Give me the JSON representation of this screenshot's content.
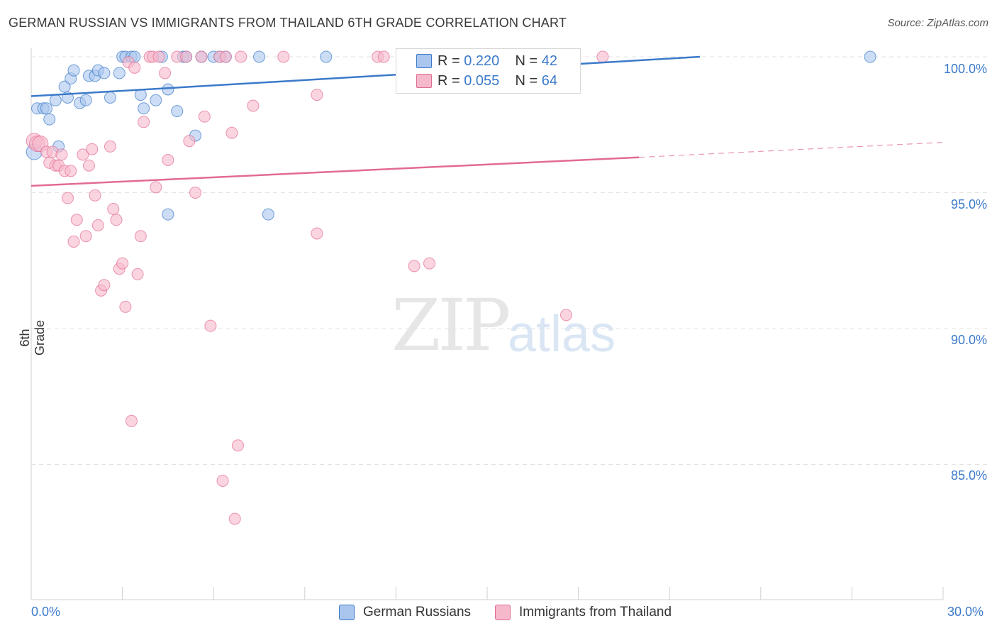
{
  "header": {
    "title": "GERMAN RUSSIAN VS IMMIGRANTS FROM THAILAND 6TH GRADE CORRELATION CHART",
    "source": "Source: ZipAtlas.com"
  },
  "watermark": {
    "zip": "ZIP",
    "atlas": "atlas"
  },
  "legend": {
    "rows": [
      {
        "r_label": "R =",
        "r_value": "0.220",
        "n_label": "N =",
        "n_value": "42"
      },
      {
        "r_label": "R =",
        "r_value": "0.055",
        "n_label": "N =",
        "n_value": "64"
      }
    ]
  },
  "bottom_legend": {
    "series1": "German Russians",
    "series2": "Immigrants from Thailand"
  },
  "axes": {
    "ylabel": "6th Grade",
    "xmin_label": "0.0%",
    "xmax_label": "30.0%",
    "yticks": [
      "100.0%",
      "95.0%",
      "90.0%",
      "85.0%"
    ]
  },
  "colors": {
    "blue": "#3b7ac9",
    "blue_fill": "#aac6ee",
    "pink": "#e26b93",
    "pink_fill": "#f6b9cc",
    "grid": "#e3e3e3"
  },
  "chart_data": {
    "type": "scatter",
    "xlabel": "",
    "ylabel": "6th Grade",
    "xlim": [
      0,
      30
    ],
    "ylim": [
      80.4,
      100.7
    ],
    "grid": true,
    "series": [
      {
        "name": "German Russians",
        "color": "#3b7ac9",
        "r": 0.22,
        "n": 42,
        "trend": {
          "x": [
            0,
            22.0
          ],
          "y": [
            98.55,
            100.0
          ]
        },
        "points": [
          [
            0.1,
            96.5
          ],
          [
            0.2,
            98.1
          ],
          [
            0.4,
            98.1
          ],
          [
            0.5,
            98.1
          ],
          [
            0.6,
            97.7
          ],
          [
            0.8,
            98.4
          ],
          [
            0.9,
            96.7
          ],
          [
            1.1,
            98.9
          ],
          [
            1.2,
            98.5
          ],
          [
            1.3,
            99.2
          ],
          [
            1.4,
            99.5
          ],
          [
            1.6,
            98.3
          ],
          [
            1.8,
            98.4
          ],
          [
            1.9,
            99.3
          ],
          [
            2.1,
            99.3
          ],
          [
            2.2,
            99.5
          ],
          [
            2.4,
            99.4
          ],
          [
            2.6,
            98.5
          ],
          [
            2.9,
            99.4
          ],
          [
            3.0,
            100.0
          ],
          [
            3.1,
            100.0
          ],
          [
            3.3,
            100.0
          ],
          [
            3.4,
            100.0
          ],
          [
            3.6,
            98.6
          ],
          [
            3.7,
            98.1
          ],
          [
            4.1,
            98.4
          ],
          [
            4.3,
            100.0
          ],
          [
            4.5,
            94.2
          ],
          [
            4.5,
            98.8
          ],
          [
            4.8,
            98.0
          ],
          [
            5.0,
            100.0
          ],
          [
            5.1,
            100.0
          ],
          [
            5.6,
            100.0
          ],
          [
            5.4,
            97.1
          ],
          [
            6.0,
            100.0
          ],
          [
            6.2,
            100.0
          ],
          [
            6.4,
            100.0
          ],
          [
            7.5,
            100.0
          ],
          [
            7.8,
            94.2
          ],
          [
            9.7,
            100.0
          ],
          [
            12.6,
            100.0
          ],
          [
            27.6,
            100.0
          ]
        ]
      },
      {
        "name": "Immigrants from Thailand",
        "color": "#e26b93",
        "r": 0.055,
        "n": 64,
        "trend": {
          "x": [
            0,
            20.0
          ],
          "y": [
            95.25,
            96.3
          ]
        },
        "trend_ext": {
          "x": [
            20.0,
            30.0
          ],
          "y": [
            96.3,
            96.85
          ]
        },
        "points": [
          [
            0.1,
            96.9
          ],
          [
            0.2,
            96.8
          ],
          [
            0.3,
            96.8
          ],
          [
            0.5,
            96.5
          ],
          [
            0.6,
            96.1
          ],
          [
            0.7,
            96.5
          ],
          [
            0.8,
            96.0
          ],
          [
            0.9,
            96.0
          ],
          [
            1.0,
            96.4
          ],
          [
            1.1,
            95.8
          ],
          [
            1.2,
            94.8
          ],
          [
            1.3,
            95.8
          ],
          [
            1.4,
            93.2
          ],
          [
            1.5,
            94.0
          ],
          [
            1.7,
            96.4
          ],
          [
            1.8,
            93.4
          ],
          [
            1.9,
            96.0
          ],
          [
            2.0,
            96.6
          ],
          [
            2.1,
            94.9
          ],
          [
            2.2,
            93.8
          ],
          [
            2.3,
            91.4
          ],
          [
            2.4,
            91.6
          ],
          [
            2.6,
            96.7
          ],
          [
            2.7,
            94.4
          ],
          [
            2.8,
            94.0
          ],
          [
            2.9,
            92.2
          ],
          [
            3.0,
            92.4
          ],
          [
            3.1,
            90.8
          ],
          [
            3.2,
            99.8
          ],
          [
            3.3,
            86.6
          ],
          [
            3.4,
            99.6
          ],
          [
            3.5,
            92.0
          ],
          [
            3.6,
            93.4
          ],
          [
            3.7,
            97.6
          ],
          [
            3.9,
            100.0
          ],
          [
            4.0,
            100.0
          ],
          [
            4.1,
            95.2
          ],
          [
            4.2,
            100.0
          ],
          [
            4.4,
            99.4
          ],
          [
            4.5,
            96.2
          ],
          [
            4.8,
            100.0
          ],
          [
            5.1,
            100.0
          ],
          [
            5.2,
            96.9
          ],
          [
            5.4,
            95.0
          ],
          [
            5.6,
            100.0
          ],
          [
            5.7,
            97.8
          ],
          [
            5.9,
            90.1
          ],
          [
            6.2,
            100.0
          ],
          [
            6.3,
            84.4
          ],
          [
            6.4,
            100.0
          ],
          [
            6.6,
            97.2
          ],
          [
            6.7,
            83.0
          ],
          [
            6.8,
            85.7
          ],
          [
            6.9,
            100.0
          ],
          [
            7.3,
            98.2
          ],
          [
            8.3,
            100.0
          ],
          [
            9.4,
            98.6
          ],
          [
            9.4,
            93.5
          ],
          [
            11.4,
            100.0
          ],
          [
            11.6,
            100.0
          ],
          [
            12.6,
            92.3
          ],
          [
            13.1,
            92.4
          ],
          [
            17.6,
            90.5
          ],
          [
            18.8,
            100.0
          ]
        ]
      }
    ]
  }
}
